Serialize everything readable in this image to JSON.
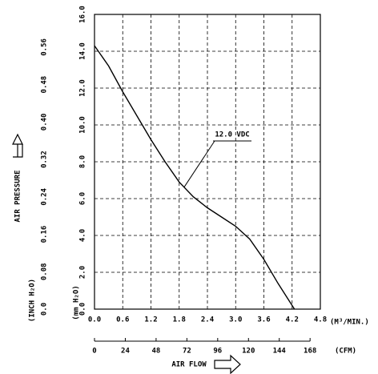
{
  "chart_data": {
    "type": "line",
    "x_label": "AIR FLOW",
    "y_label": "AIR PRESSURE",
    "x_unit": "(M³/MIN.)",
    "x2_unit": "(CFM)",
    "y_unit": "(mm H₂O)",
    "y2_unit": "(INCH H₂O)",
    "x": [
      0,
      0.3,
      0.6,
      0.9,
      1.2,
      1.5,
      1.8,
      2.1,
      2.4,
      2.7,
      3.0,
      3.3,
      3.6,
      3.9,
      4.25
    ],
    "series": [
      {
        "name": "12.0 VDC",
        "color": "#000000",
        "values": [
          14.3,
          13.2,
          11.8,
          10.5,
          9.2,
          8.0,
          6.9,
          6.1,
          5.5,
          5.0,
          4.5,
          3.8,
          2.7,
          1.4,
          0.0
        ]
      }
    ],
    "annotation_x": 1.9,
    "annotation_y": 6.6,
    "xlim": [
      0,
      4.8
    ],
    "xticks": [
      {
        "value": 0,
        "label": "0.0"
      },
      0.6,
      1.2,
      1.8,
      2.4,
      {
        "value": 3,
        "label": "3.0"
      },
      3.6,
      4.2,
      4.8
    ],
    "x2lim": [
      0,
      176
    ],
    "x2ticks": [
      0,
      24,
      48,
      72,
      96,
      120,
      144,
      168
    ],
    "ylim": [
      0,
      16
    ],
    "yticks": [
      {
        "value": 0,
        "label": "0.0"
      },
      {
        "value": 2,
        "label": "2.0"
      },
      {
        "value": 4,
        "label": "4.0"
      },
      {
        "value": 6,
        "label": "6.0"
      },
      {
        "value": 8,
        "label": "8.0"
      },
      {
        "value": 10,
        "label": "10.0"
      },
      {
        "value": 12,
        "label": "12.0"
      },
      {
        "value": 14,
        "label": "14.0"
      },
      {
        "value": 16,
        "label": "16.0"
      }
    ],
    "y2lim": [
      0,
      0.63
    ],
    "y2ticks": [
      {
        "value": 0,
        "label": "0.0"
      },
      0.08,
      0.16,
      0.24,
      0.32,
      {
        "value": 0.4,
        "label": "0.40"
      },
      0.48,
      0.56
    ],
    "grid": true
  }
}
